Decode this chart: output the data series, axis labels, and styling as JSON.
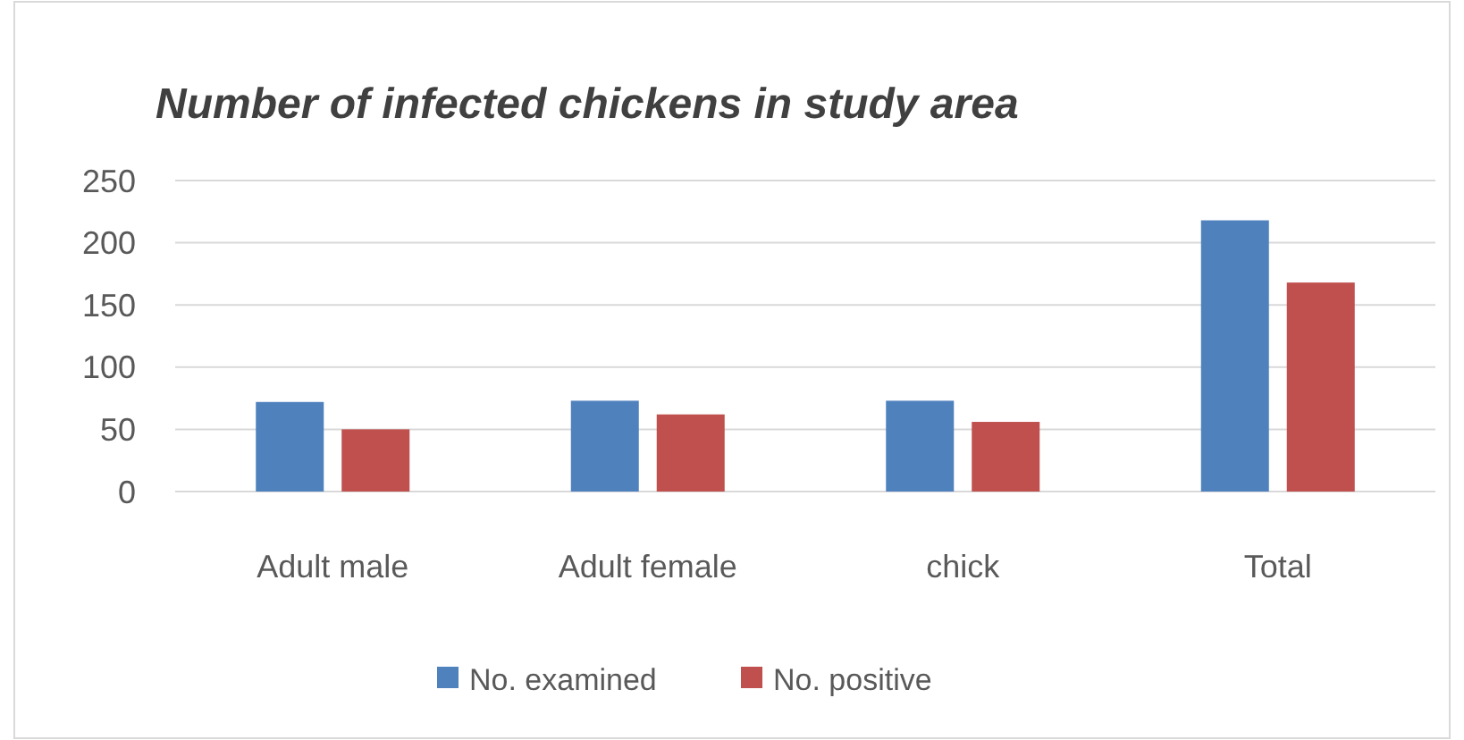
{
  "chart_data": {
    "type": "bar",
    "title": "Number of infected chickens in study area",
    "categories": [
      "Adult male",
      "Adult female",
      "chick",
      "Total"
    ],
    "series": [
      {
        "name": "No. examined",
        "color": "#4f81bd",
        "values": [
          72,
          73,
          73,
          218
        ]
      },
      {
        "name": "No. positive",
        "color": "#c0504d",
        "values": [
          50,
          62,
          56,
          168
        ]
      }
    ],
    "ylim": [
      0,
      250
    ],
    "yticks": [
      0,
      50,
      100,
      150,
      200,
      250
    ],
    "grid": "y",
    "legend": "bottom"
  }
}
